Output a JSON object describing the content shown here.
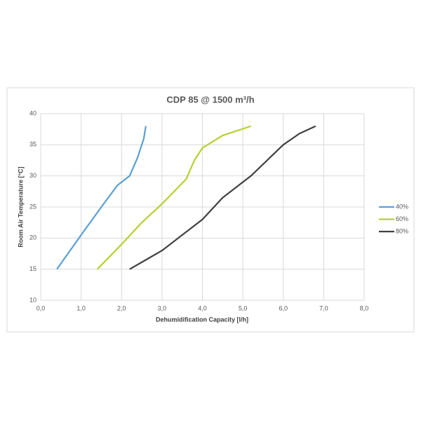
{
  "chart_data": {
    "type": "line",
    "title": "CDP 85 @ 1500 m³/h",
    "x_label": "Dehumidification Capacity [l/h]",
    "y_label": "Room Air  Temperature [°C]",
    "xlim": [
      0,
      8
    ],
    "xticks": [
      {
        "value": 0,
        "label": "0,0"
      },
      {
        "value": 1,
        "label": "1,0"
      },
      {
        "value": 2,
        "label": "2,0"
      },
      {
        "value": 3,
        "label": "3,0"
      },
      {
        "value": 4,
        "label": "4,0"
      },
      {
        "value": 5,
        "label": "5,0"
      },
      {
        "value": 6,
        "label": "6,0"
      },
      {
        "value": 7,
        "label": "7,0"
      },
      {
        "value": 8,
        "label": "8,0"
      }
    ],
    "ylim": [
      10,
      40
    ],
    "yticks": [
      10,
      15,
      20,
      25,
      30,
      35,
      40
    ],
    "grid": true,
    "legend": "right",
    "series": [
      {
        "name": "40%",
        "color": "#5b9fd5",
        "x": [
          0.4,
          1.0,
          1.5,
          1.9,
          2.1,
          2.2,
          2.4,
          2.55,
          2.6
        ],
        "values": [
          15,
          20.5,
          25,
          28.5,
          29.5,
          30,
          33,
          36,
          38
        ]
      },
      {
        "name": "60%",
        "color": "#b4d22f",
        "x": [
          1.4,
          2.0,
          2.5,
          3.0,
          3.6,
          3.8,
          4.0,
          4.5,
          5.2
        ],
        "values": [
          15,
          19,
          22.5,
          25.5,
          29.5,
          32.5,
          34.5,
          36.5,
          38
        ]
      },
      {
        "name": "80%",
        "color": "#404040",
        "x": [
          2.2,
          2.6,
          3.0,
          3.5,
          4.0,
          4.5,
          5.0,
          5.2,
          5.6,
          6.0,
          6.4,
          6.8
        ],
        "values": [
          15,
          16.5,
          18,
          20.5,
          23,
          26.5,
          29,
          30,
          32.5,
          35,
          36.8,
          38
        ]
      }
    ]
  }
}
